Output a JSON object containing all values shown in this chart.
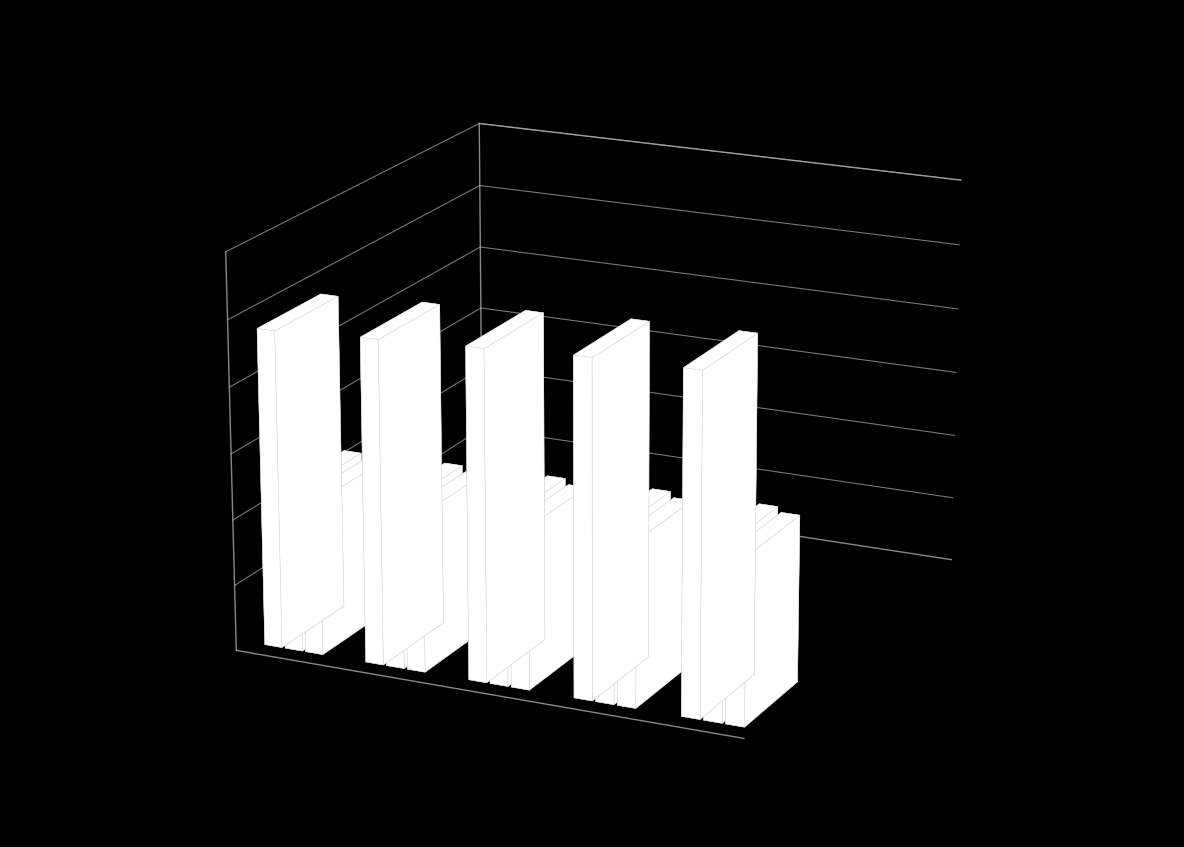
{
  "groups": [
    {
      "total": 11200,
      "kobiety": 5700,
      "mezczyzni": 5500
    },
    {
      "total": 11400,
      "kobiety": 5800,
      "mezczyzni": 5600
    },
    {
      "total": 11600,
      "kobiety": 5900,
      "mezczyzni": 5700
    },
    {
      "total": 11800,
      "kobiety": 6000,
      "mezczyzni": 5800
    },
    {
      "total": 11893,
      "kobiety": 6038,
      "mezczyzni": 5855
    }
  ],
  "zlim": [
    0,
    14000
  ],
  "bar_color": "#ffffff",
  "background_color": "#000000",
  "grid_color": "#aaaaaa",
  "bar_width": 0.55,
  "bar_depth": 0.5,
  "elev": 18,
  "azim": -65
}
